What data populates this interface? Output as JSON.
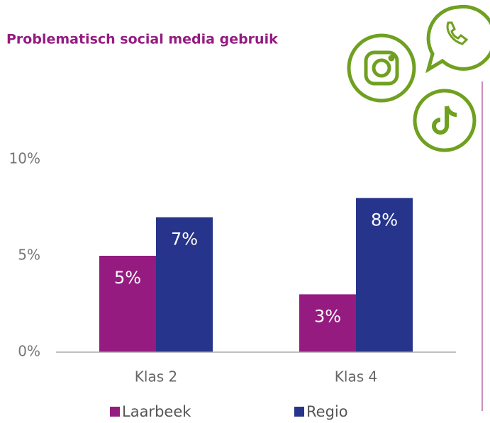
{
  "chart_data": {
    "type": "bar",
    "title": "Problematisch social media gebruik",
    "categories": [
      "Klas 2",
      "Klas 4"
    ],
    "series": [
      {
        "name": "Laarbeek",
        "color": "#951b81",
        "values": [
          5,
          3
        ],
        "value_labels": [
          "5%",
          "3%"
        ]
      },
      {
        "name": "Regio",
        "color": "#27348b",
        "values": [
          7,
          8
        ],
        "value_labels": [
          "7%",
          "8%"
        ]
      }
    ],
    "ylim": [
      0,
      10
    ],
    "yticks": [
      {
        "value": 0,
        "label": "0%"
      },
      {
        "value": 5,
        "label": "5%"
      },
      {
        "value": 10,
        "label": "10%"
      }
    ]
  }
}
